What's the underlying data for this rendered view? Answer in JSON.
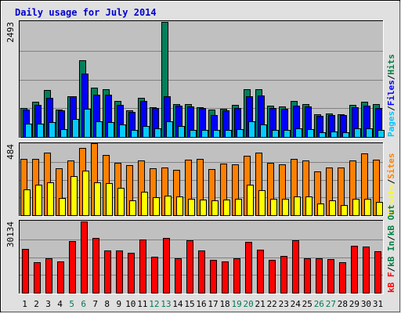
{
  "colors": {
    "background": "#e0e0e0",
    "plot_background": "#c0c0c0",
    "frame_dark": "#000000",
    "frame_light": "#ffffff",
    "title": "#0000cc",
    "axis_text": "#000000",
    "weekend_text": "#007a56",
    "grid": "#808080"
  },
  "chart_data": {
    "type": "bar",
    "title": "Daily usage for July 2014",
    "categories": [
      "1",
      "2",
      "3",
      "4",
      "5",
      "6",
      "7",
      "8",
      "9",
      "10",
      "11",
      "12",
      "13",
      "14",
      "15",
      "16",
      "17",
      "18",
      "19",
      "20",
      "21",
      "22",
      "23",
      "24",
      "25",
      "26",
      "27",
      "28",
      "29",
      "30",
      "31"
    ],
    "highlighted_categories": [
      "5",
      "6",
      "12",
      "13",
      "19",
      "20",
      "26",
      "27"
    ],
    "panels": [
      {
        "name": "hits-files-pages",
        "max_label": "2493",
        "ylim": [
          0,
          2493
        ],
        "grid": true,
        "legend_labels": [
          {
            "text": "Pages",
            "color": "#00c8ff"
          },
          {
            "text": "/",
            "color": "#000000"
          },
          {
            "text": "Files",
            "color": "#0000ff"
          },
          {
            "text": "/",
            "color": "#000000"
          },
          {
            "text": "Hits",
            "color": "#008040"
          }
        ],
        "series": [
          {
            "name": "Hits",
            "color": "#00805c",
            "values": [
              630,
              760,
              1020,
              595,
              890,
              1670,
              1060,
              1030,
              780,
              580,
              850,
              650,
              2490,
              720,
              720,
              640,
              590,
              615,
              690,
              1030,
              1030,
              670,
              665,
              780,
              705,
              490,
              510,
              500,
              690,
              770,
              710
            ]
          },
          {
            "name": "Files",
            "color": "#0000ff",
            "values": [
              600,
              700,
              850,
              580,
              880,
              1380,
              910,
              920,
              690,
              540,
              780,
              620,
              890,
              680,
              660,
              620,
              480,
              580,
              630,
              880,
              900,
              620,
              610,
              670,
              660,
              460,
              480,
              470,
              640,
              680,
              630
            ]
          },
          {
            "name": "Pages",
            "color": "#00ccff",
            "values": [
              290,
              280,
              325,
              165,
              390,
              610,
              335,
              320,
              270,
              150,
              245,
              190,
              345,
              240,
              160,
              155,
              150,
              150,
              165,
              345,
              275,
              160,
              160,
              190,
              175,
              110,
              125,
              100,
              185,
              180,
              160
            ]
          }
        ]
      },
      {
        "name": "visits-sites",
        "max_label": "484",
        "ylim": [
          0,
          484
        ],
        "grid": true,
        "legend_labels": [
          {
            "text": "Visits",
            "color": "#ffff00"
          },
          {
            "text": "/",
            "color": "#000000"
          },
          {
            "text": "Sites",
            "color": "#ff8000"
          }
        ],
        "series": [
          {
            "name": "Sites",
            "color": "#ff8000",
            "values": [
              385,
              385,
              425,
              320,
              370,
              460,
              488,
              410,
              355,
              340,
              370,
              320,
              325,
              310,
              380,
              385,
              315,
              350,
              345,
              405,
              425,
              355,
              345,
              385,
              370,
              300,
              325,
              325,
              370,
              420,
              380
            ]
          },
          {
            "name": "Visits",
            "color": "#ffff00",
            "values": [
              175,
              205,
              225,
              115,
              265,
              305,
              225,
              220,
              185,
              100,
              160,
              120,
              135,
              130,
              110,
              105,
              100,
              105,
              110,
              210,
              170,
              110,
              110,
              130,
              130,
              80,
              100,
              70,
              110,
              110,
              90
            ]
          }
        ]
      },
      {
        "name": "kbytes",
        "max_label": "30134",
        "ylim": [
          0,
          30134
        ],
        "grid": true,
        "legend_labels": [
          {
            "text": "kB F",
            "color": "#ff0000"
          },
          {
            "text": "/",
            "color": "#000000"
          },
          {
            "text": "kB In",
            "color": "#008040"
          },
          {
            "text": "/",
            "color": "#000000"
          },
          {
            "text": "kB Out",
            "color": "#008040"
          }
        ],
        "series": [
          {
            "name": "kB F",
            "color": "#ff0000",
            "values": [
              18700,
              12800,
              14600,
              13300,
              21800,
              30134,
              23200,
              18000,
              17900,
              16900,
              22400,
              15100,
              23200,
              14700,
              22100,
              18000,
              13800,
              13200,
              14600,
              21500,
              18300,
              13800,
              15600,
              22300,
              14700,
              14500,
              14400,
              12900,
              20000,
              19500,
              17500
            ]
          }
        ]
      }
    ]
  }
}
